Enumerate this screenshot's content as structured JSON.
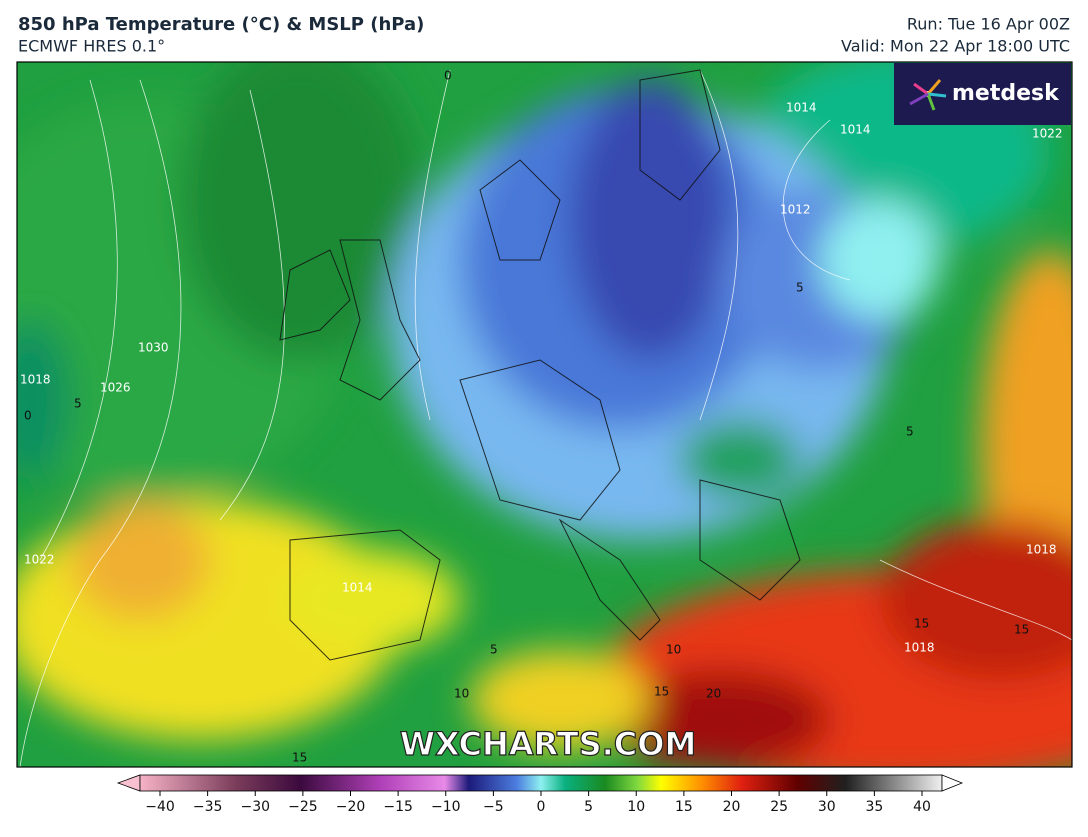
{
  "header": {
    "title": "850 hPa Temperature (°C) & MSLP (hPa)",
    "subtitle": "ECMWF HRES 0.1°",
    "run": "Run: Tue 16 Apr 00Z",
    "valid": "Valid: Mon 22 Apr 18:00 UTC"
  },
  "logo": "metdesk",
  "watermark": "WXCHARTS.COM",
  "map_labels": [
    "0",
    "1030",
    "1026",
    "1018",
    "0",
    "5",
    "1022",
    "1014",
    "1014",
    "1014",
    "1022",
    "1012",
    "5",
    "5",
    "5",
    "10",
    "15",
    "20",
    "15",
    "1018",
    "15",
    "1018",
    "15",
    "10"
  ],
  "colorbar": {
    "lim": [
      -40,
      40
    ],
    "ticks": [
      {
        "value": -40,
        "label": "−40"
      },
      {
        "value": -35,
        "label": "−35"
      },
      {
        "value": -30,
        "label": "−30"
      },
      {
        "value": -25,
        "label": "−25"
      },
      {
        "value": -20,
        "label": "−20"
      },
      {
        "value": -15,
        "label": "−15"
      },
      {
        "value": -10,
        "label": "−10"
      },
      {
        "value": -5,
        "label": "−5"
      },
      0,
      5,
      10,
      15,
      20,
      25,
      30,
      35,
      40
    ]
  }
}
